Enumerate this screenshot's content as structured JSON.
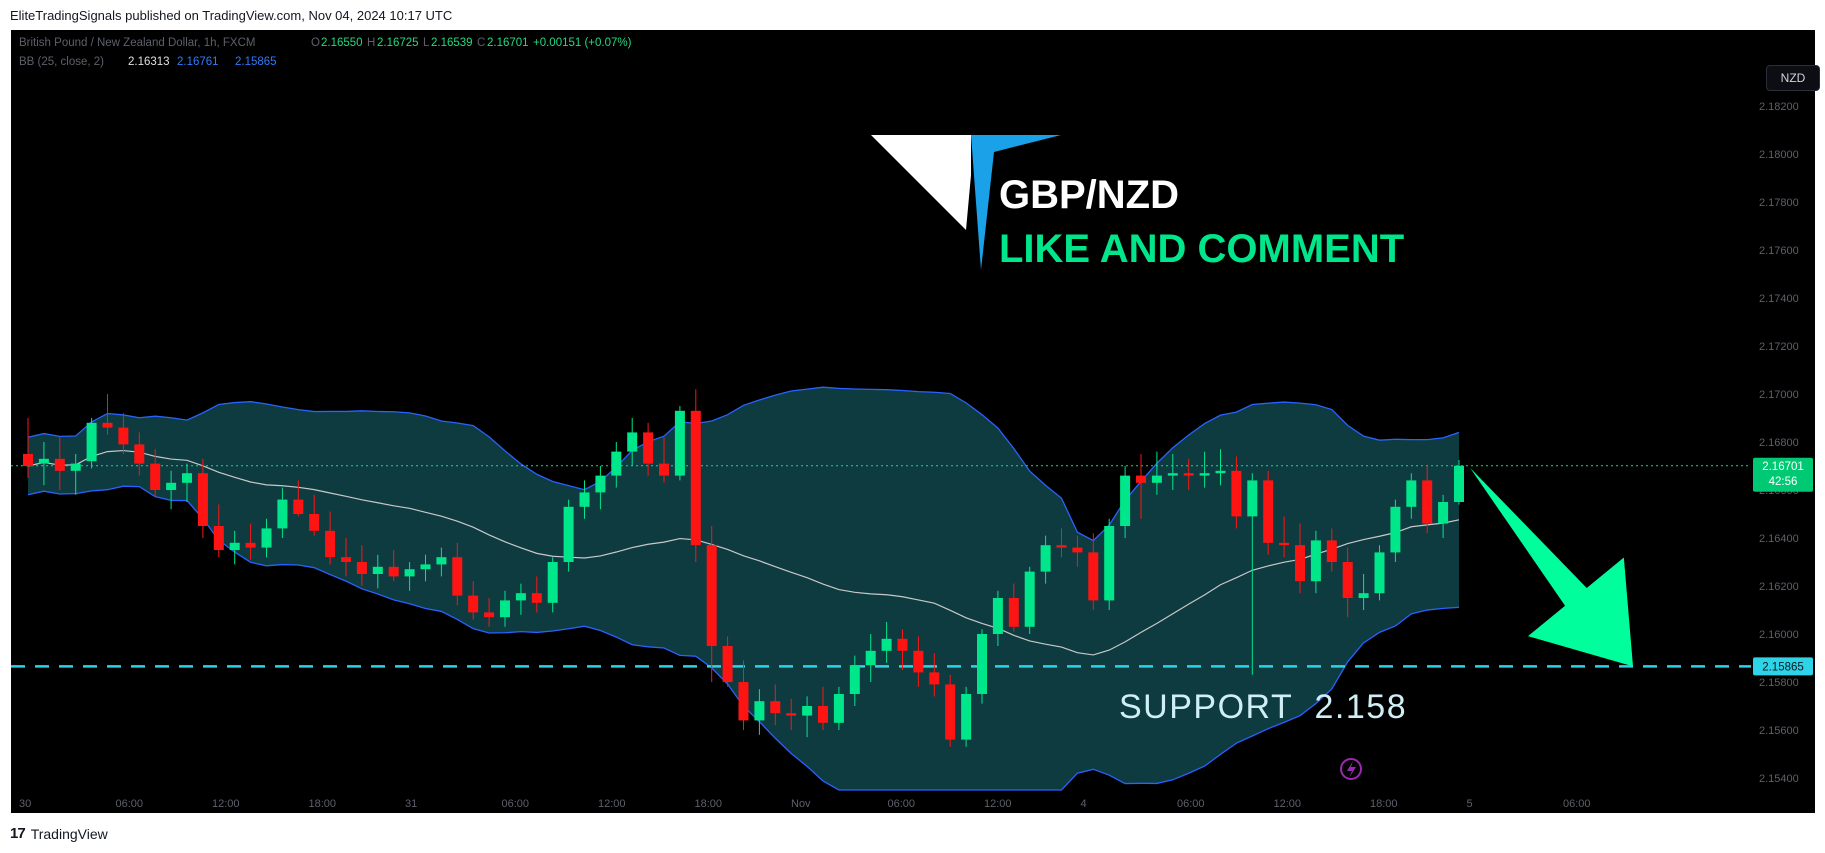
{
  "header": {
    "publisher": "EliteTradingSignals published on TradingView.com, Nov 04, 2024 10:17 UTC"
  },
  "footer": {
    "brand": "TradingView"
  },
  "toolbar": {
    "currency": "NZD"
  },
  "legend": {
    "symbol": "British Pound / New Zealand Dollar, 1h, FXCM",
    "o_label": "O",
    "o": "2.16550",
    "h_label": "H",
    "h": "2.16725",
    "l_label": "L",
    "l": "2.16539",
    "c_label": "C",
    "c": "2.16701",
    "change": "+0.00151 (+0.07%)",
    "indicator": "BB (25, close, 2)",
    "bb_basis": "2.16313",
    "bb_upper": "2.16761",
    "bb_lower": "2.15865"
  },
  "annotation": {
    "pair": "GBP/NZD",
    "cta": "LIKE AND COMMENT",
    "support_text": "SUPPORT  2.158"
  },
  "price_tags": {
    "last": "2.16701",
    "countdown": "42:56",
    "support": "2.15865"
  },
  "colors": {
    "up": "#00e68a",
    "down": "#ff1414",
    "band_fill": "#0d3b40",
    "band_line": "#2962ff",
    "basis_line": "#c8c8c8",
    "support_line": "#2ed3e8",
    "arrow": "#00ff9c",
    "logo_white": "#ffffff",
    "logo_blue": "#1aa1e8"
  },
  "chart_data": {
    "type": "candlestick",
    "interval": "1h",
    "ylim": [
      2.1535,
      2.1835
    ],
    "y_ticks": [
      "2.18200",
      "2.18000",
      "2.17800",
      "2.17600",
      "2.17400",
      "2.17200",
      "2.17000",
      "2.16800",
      "2.16600",
      "2.16400",
      "2.16200",
      "2.16000",
      "2.15800",
      "2.15600",
      "2.15400"
    ],
    "x_ticks": [
      "30",
      "06:00",
      "12:00",
      "18:00",
      "31",
      "06:00",
      "12:00",
      "18:00",
      "Nov",
      "06:00",
      "12:00",
      "4",
      "06:00",
      "12:00",
      "18:00",
      "5",
      "06:00"
    ],
    "last_price": 2.16701,
    "support_level": 2.15865,
    "candles": [
      {
        "o": 2.1675,
        "h": 2.169,
        "l": 2.1665,
        "c": 2.167
      },
      {
        "o": 2.1671,
        "h": 2.168,
        "l": 2.1662,
        "c": 2.1673
      },
      {
        "o": 2.1673,
        "h": 2.1682,
        "l": 2.166,
        "c": 2.1668
      },
      {
        "o": 2.1668,
        "h": 2.1675,
        "l": 2.1658,
        "c": 2.1671
      },
      {
        "o": 2.1672,
        "h": 2.169,
        "l": 2.1669,
        "c": 2.1688
      },
      {
        "o": 2.1688,
        "h": 2.17,
        "l": 2.1683,
        "c": 2.1686
      },
      {
        "o": 2.1686,
        "h": 2.1692,
        "l": 2.1675,
        "c": 2.1679
      },
      {
        "o": 2.1679,
        "h": 2.1684,
        "l": 2.1666,
        "c": 2.1671
      },
      {
        "o": 2.1671,
        "h": 2.1677,
        "l": 2.1657,
        "c": 2.166
      },
      {
        "o": 2.166,
        "h": 2.1668,
        "l": 2.1652,
        "c": 2.1663
      },
      {
        "o": 2.1663,
        "h": 2.1671,
        "l": 2.1655,
        "c": 2.1667
      },
      {
        "o": 2.1667,
        "h": 2.1673,
        "l": 2.164,
        "c": 2.1645
      },
      {
        "o": 2.1645,
        "h": 2.1654,
        "l": 2.1632,
        "c": 2.1635
      },
      {
        "o": 2.1635,
        "h": 2.1643,
        "l": 2.1629,
        "c": 2.1638
      },
      {
        "o": 2.1638,
        "h": 2.1646,
        "l": 2.1631,
        "c": 2.1636
      },
      {
        "o": 2.1636,
        "h": 2.1648,
        "l": 2.1632,
        "c": 2.1644
      },
      {
        "o": 2.1644,
        "h": 2.1661,
        "l": 2.164,
        "c": 2.1656
      },
      {
        "o": 2.1656,
        "h": 2.1664,
        "l": 2.1649,
        "c": 2.165
      },
      {
        "o": 2.165,
        "h": 2.1658,
        "l": 2.1641,
        "c": 2.1643
      },
      {
        "o": 2.1643,
        "h": 2.1651,
        "l": 2.1629,
        "c": 2.1632
      },
      {
        "o": 2.1632,
        "h": 2.164,
        "l": 2.1624,
        "c": 2.163
      },
      {
        "o": 2.163,
        "h": 2.1637,
        "l": 2.162,
        "c": 2.1625
      },
      {
        "o": 2.1625,
        "h": 2.1633,
        "l": 2.1619,
        "c": 2.1628
      },
      {
        "o": 2.1628,
        "h": 2.1635,
        "l": 2.1622,
        "c": 2.1624
      },
      {
        "o": 2.1624,
        "h": 2.163,
        "l": 2.1618,
        "c": 2.1627
      },
      {
        "o": 2.1627,
        "h": 2.1633,
        "l": 2.1622,
        "c": 2.1629
      },
      {
        "o": 2.1629,
        "h": 2.1636,
        "l": 2.1624,
        "c": 2.1632
      },
      {
        "o": 2.1632,
        "h": 2.1638,
        "l": 2.1612,
        "c": 2.1616
      },
      {
        "o": 2.1616,
        "h": 2.1622,
        "l": 2.1606,
        "c": 2.1609
      },
      {
        "o": 2.1609,
        "h": 2.1615,
        "l": 2.1603,
        "c": 2.1607
      },
      {
        "o": 2.1607,
        "h": 2.1618,
        "l": 2.1603,
        "c": 2.1614
      },
      {
        "o": 2.1614,
        "h": 2.1621,
        "l": 2.1608,
        "c": 2.1617
      },
      {
        "o": 2.1617,
        "h": 2.1624,
        "l": 2.1609,
        "c": 2.1613
      },
      {
        "o": 2.1613,
        "h": 2.1632,
        "l": 2.1609,
        "c": 2.163
      },
      {
        "o": 2.163,
        "h": 2.1656,
        "l": 2.1626,
        "c": 2.1653
      },
      {
        "o": 2.1653,
        "h": 2.1664,
        "l": 2.1648,
        "c": 2.1659
      },
      {
        "o": 2.1659,
        "h": 2.167,
        "l": 2.1652,
        "c": 2.1666
      },
      {
        "o": 2.1666,
        "h": 2.168,
        "l": 2.1661,
        "c": 2.1676
      },
      {
        "o": 2.1676,
        "h": 2.169,
        "l": 2.167,
        "c": 2.1684
      },
      {
        "o": 2.1684,
        "h": 2.1688,
        "l": 2.1666,
        "c": 2.1671
      },
      {
        "o": 2.1671,
        "h": 2.1682,
        "l": 2.1663,
        "c": 2.1666
      },
      {
        "o": 2.1666,
        "h": 2.1695,
        "l": 2.1664,
        "c": 2.1693
      },
      {
        "o": 2.1693,
        "h": 2.1702,
        "l": 2.163,
        "c": 2.1637
      },
      {
        "o": 2.1637,
        "h": 2.1645,
        "l": 2.158,
        "c": 2.1595
      },
      {
        "o": 2.1595,
        "h": 2.1599,
        "l": 2.1578,
        "c": 2.158
      },
      {
        "o": 2.158,
        "h": 2.1589,
        "l": 2.156,
        "c": 2.1564
      },
      {
        "o": 2.1564,
        "h": 2.1577,
        "l": 2.1558,
        "c": 2.1572
      },
      {
        "o": 2.1572,
        "h": 2.1579,
        "l": 2.1562,
        "c": 2.1567
      },
      {
        "o": 2.1567,
        "h": 2.1573,
        "l": 2.156,
        "c": 2.1566
      },
      {
        "o": 2.1566,
        "h": 2.1574,
        "l": 2.1557,
        "c": 2.157
      },
      {
        "o": 2.157,
        "h": 2.1578,
        "l": 2.156,
        "c": 2.1563
      },
      {
        "o": 2.1563,
        "h": 2.1578,
        "l": 2.156,
        "c": 2.1575
      },
      {
        "o": 2.1575,
        "h": 2.1591,
        "l": 2.157,
        "c": 2.1587
      },
      {
        "o": 2.1587,
        "h": 2.16,
        "l": 2.158,
        "c": 2.1593
      },
      {
        "o": 2.1593,
        "h": 2.1605,
        "l": 2.1588,
        "c": 2.1598
      },
      {
        "o": 2.1598,
        "h": 2.1602,
        "l": 2.1585,
        "c": 2.1593
      },
      {
        "o": 2.1593,
        "h": 2.1599,
        "l": 2.1578,
        "c": 2.1584
      },
      {
        "o": 2.1584,
        "h": 2.1592,
        "l": 2.1574,
        "c": 2.1579
      },
      {
        "o": 2.1579,
        "h": 2.1583,
        "l": 2.1553,
        "c": 2.1556
      },
      {
        "o": 2.1556,
        "h": 2.1578,
        "l": 2.1553,
        "c": 2.1575
      },
      {
        "o": 2.1575,
        "h": 2.1602,
        "l": 2.1571,
        "c": 2.16
      },
      {
        "o": 2.16,
        "h": 2.1618,
        "l": 2.1595,
        "c": 2.1615
      },
      {
        "o": 2.1615,
        "h": 2.1621,
        "l": 2.1601,
        "c": 2.1603
      },
      {
        "o": 2.1603,
        "h": 2.1628,
        "l": 2.16,
        "c": 2.1626
      },
      {
        "o": 2.1626,
        "h": 2.1641,
        "l": 2.1621,
        "c": 2.1637
      },
      {
        "o": 2.1637,
        "h": 2.1644,
        "l": 2.1632,
        "c": 2.1636
      },
      {
        "o": 2.1636,
        "h": 2.1641,
        "l": 2.1628,
        "c": 2.1634
      },
      {
        "o": 2.1634,
        "h": 2.1642,
        "l": 2.161,
        "c": 2.1614
      },
      {
        "o": 2.1614,
        "h": 2.1648,
        "l": 2.161,
        "c": 2.1645
      },
      {
        "o": 2.1645,
        "h": 2.167,
        "l": 2.164,
        "c": 2.1666
      },
      {
        "o": 2.1666,
        "h": 2.1675,
        "l": 2.1648,
        "c": 2.1663
      },
      {
        "o": 2.1663,
        "h": 2.1676,
        "l": 2.1658,
        "c": 2.1666
      },
      {
        "o": 2.1666,
        "h": 2.1675,
        "l": 2.166,
        "c": 2.1667
      },
      {
        "o": 2.1667,
        "h": 2.1673,
        "l": 2.166,
        "c": 2.1666
      },
      {
        "o": 2.1666,
        "h": 2.1676,
        "l": 2.1661,
        "c": 2.1667
      },
      {
        "o": 2.1667,
        "h": 2.1677,
        "l": 2.1662,
        "c": 2.1668
      },
      {
        "o": 2.1668,
        "h": 2.1674,
        "l": 2.1644,
        "c": 2.1649
      },
      {
        "o": 2.1649,
        "h": 2.1667,
        "l": 2.1583,
        "c": 2.1664
      },
      {
        "o": 2.1664,
        "h": 2.1668,
        "l": 2.1633,
        "c": 2.1638
      },
      {
        "o": 2.1638,
        "h": 2.1649,
        "l": 2.1632,
        "c": 2.1637
      },
      {
        "o": 2.1637,
        "h": 2.1646,
        "l": 2.1617,
        "c": 2.1622
      },
      {
        "o": 2.1622,
        "h": 2.1643,
        "l": 2.1617,
        "c": 2.1639
      },
      {
        "o": 2.1639,
        "h": 2.1644,
        "l": 2.1626,
        "c": 2.163
      },
      {
        "o": 2.163,
        "h": 2.1636,
        "l": 2.1607,
        "c": 2.1615
      },
      {
        "o": 2.1615,
        "h": 2.1625,
        "l": 2.161,
        "c": 2.1617
      },
      {
        "o": 2.1617,
        "h": 2.1637,
        "l": 2.1614,
        "c": 2.1634
      },
      {
        "o": 2.1634,
        "h": 2.1656,
        "l": 2.163,
        "c": 2.1653
      },
      {
        "o": 2.1653,
        "h": 2.1667,
        "l": 2.1648,
        "c": 2.1664
      },
      {
        "o": 2.1664,
        "h": 2.167,
        "l": 2.1642,
        "c": 2.1646
      },
      {
        "o": 2.1646,
        "h": 2.1658,
        "l": 2.164,
        "c": 2.1655
      },
      {
        "o": 2.1655,
        "h": 2.16725,
        "l": 2.16539,
        "c": 2.16701
      }
    ]
  }
}
